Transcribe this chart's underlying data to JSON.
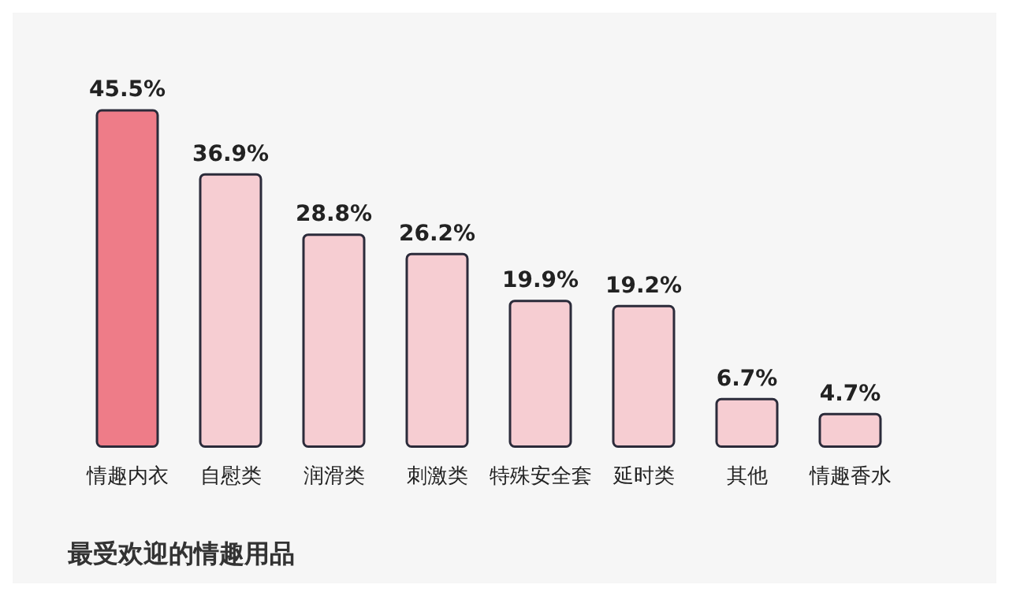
{
  "chart_data": {
    "type": "bar",
    "title": "最受欢迎的情趣用品",
    "categories": [
      "情趣内衣",
      "自慰类",
      "润滑类",
      "刺激类",
      "特殊安全套",
      "延时类",
      "其他",
      "情趣香水"
    ],
    "values": [
      45.5,
      36.9,
      28.8,
      26.2,
      19.9,
      19.2,
      6.7,
      4.7
    ],
    "colors": [
      "#ee7c88",
      "#f6cdd2",
      "#f6cdd2",
      "#f6cdd2",
      "#f6cdd2",
      "#f6cdd2",
      "#f6cdd2",
      "#f6cdd2"
    ],
    "value_labels": [
      "45.5%",
      "36.9%",
      "28.8%",
      "26.2%",
      "19.9%",
      "19.2%",
      "6.7%",
      "4.7%"
    ]
  }
}
